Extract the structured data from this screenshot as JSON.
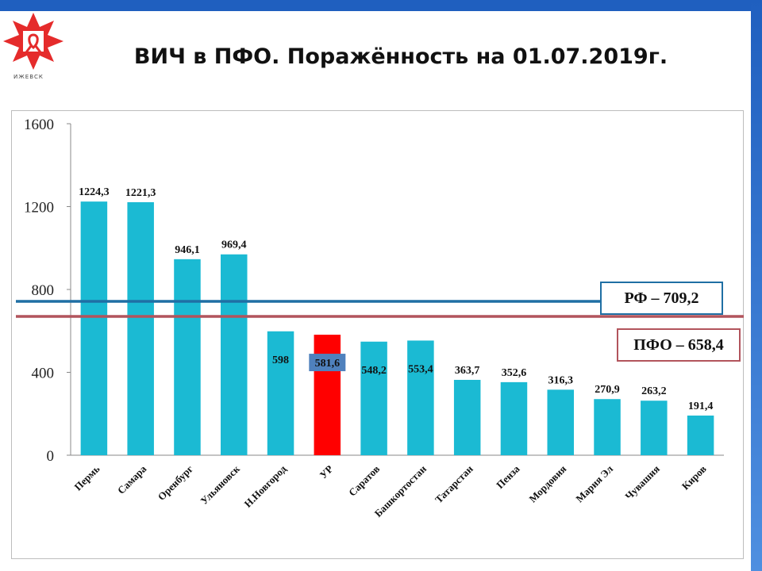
{
  "title": "ВИЧ в ПФО. Поражённость на 01.07.2019г.",
  "logo": {
    "caption": "ИЖЕВСК"
  },
  "colors": {
    "bar": "#1bbad3",
    "highlight": "#ff0000",
    "rf_line": "#1f6fa4",
    "pfo_line": "#b2545c",
    "highlight_label_bg": "#4f81bd"
  },
  "chart_data": {
    "type": "bar",
    "title": "ВИЧ в ПФО. Поражённость на 01.07.2019г.",
    "xlabel": "",
    "ylabel": "",
    "ylim": [
      0,
      1600
    ],
    "yticks": [
      0,
      400,
      800,
      1200,
      1600
    ],
    "grid": false,
    "categories": [
      "Пермь",
      "Самара",
      "Оренбург",
      "Ульяновск",
      "Н.Новгород",
      "УР",
      "Саратов",
      "Башкортостан",
      "Татарстан",
      "Пенза",
      "Мордовия",
      "Мария Эл",
      "Чувашия",
      "Киров"
    ],
    "values": [
      1224.3,
      1221.3,
      946.1,
      969.4,
      598,
      581.6,
      548.2,
      553.4,
      363.7,
      352.6,
      316.3,
      270.9,
      263.2,
      191.4
    ],
    "value_labels": [
      "1224,3",
      "1221,3",
      "946,1",
      "969,4",
      "598",
      "581,6",
      "548,2",
      "553,4",
      "363,7",
      "352,6",
      "316,3",
      "270,9",
      "263,2",
      "191,4"
    ],
    "highlight_category": "УР",
    "reference_lines": [
      {
        "label": "РФ – 709,2",
        "value": 709.2
      },
      {
        "label": "ПФО – 658,4",
        "value": 658.4
      }
    ]
  }
}
